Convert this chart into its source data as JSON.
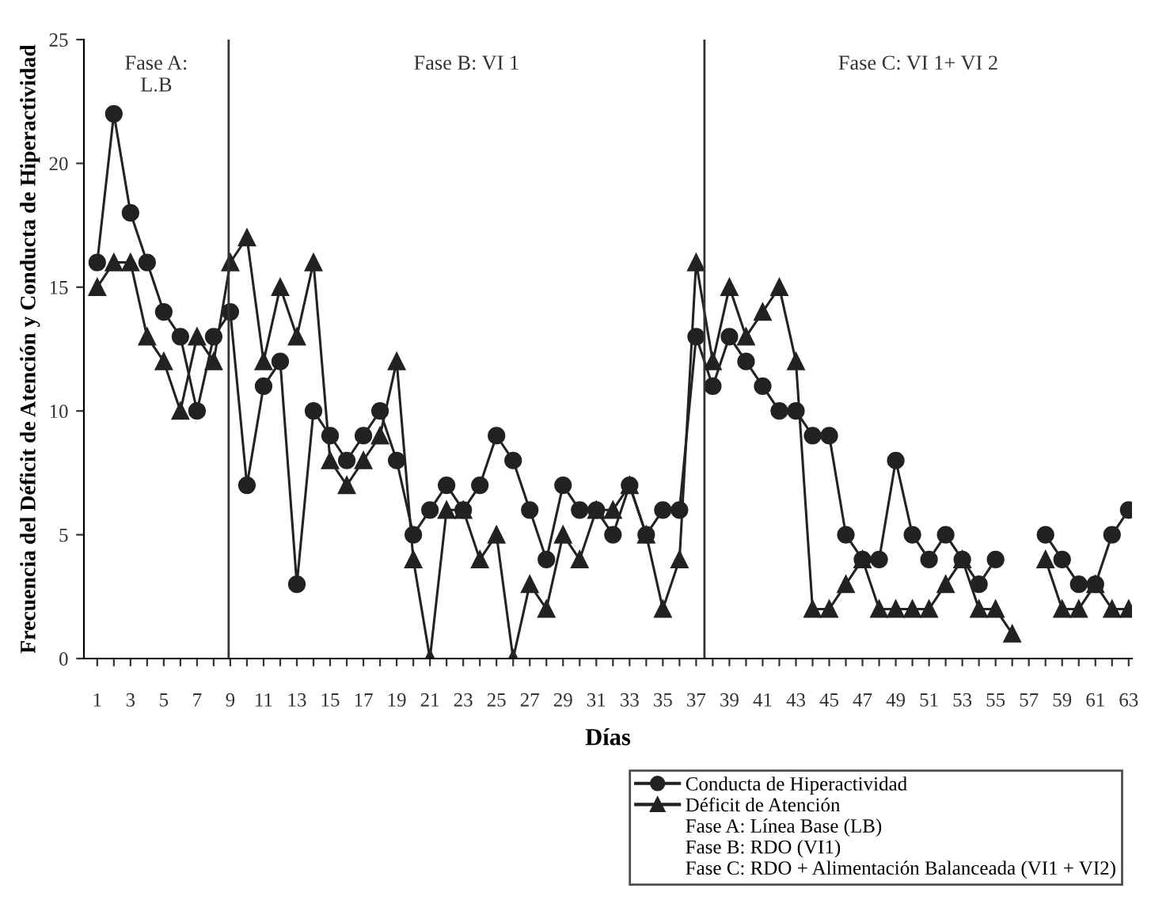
{
  "chart_data": {
    "type": "line",
    "xlabel": "Días",
    "ylabel": "Frecuencia del Déficit de Atención y Conducta de Hiperactividad",
    "x": [
      1,
      2,
      3,
      4,
      5,
      6,
      7,
      8,
      9,
      10,
      11,
      12,
      13,
      14,
      15,
      16,
      17,
      18,
      19,
      20,
      21,
      22,
      23,
      24,
      25,
      26,
      27,
      28,
      29,
      30,
      31,
      32,
      33,
      34,
      35,
      36,
      37,
      38,
      39,
      40,
      41,
      42,
      43,
      44,
      45,
      46,
      47,
      48,
      49,
      50,
      51,
      52,
      53,
      54,
      55,
      56,
      57,
      58,
      59,
      60,
      61,
      62,
      63
    ],
    "series": [
      {
        "name": "Conducta de Hiperactividad",
        "color": "#222222",
        "marker": "circle",
        "values": [
          16,
          22,
          18,
          16,
          14,
          13,
          10,
          13,
          14,
          7,
          11,
          12,
          3,
          10,
          9,
          8,
          9,
          10,
          8,
          5,
          6,
          7,
          6,
          7,
          9,
          8,
          6,
          4,
          7,
          6,
          6,
          5,
          7,
          5,
          6,
          6,
          13,
          11,
          13,
          12,
          11,
          10,
          10,
          9,
          9,
          5,
          4,
          4,
          8,
          5,
          4,
          5,
          4,
          3,
          4,
          null,
          null,
          5,
          4,
          3,
          3,
          5,
          6
        ]
      },
      {
        "name": "Déficit de Atención",
        "color": "#222222",
        "marker": "triangle",
        "values": [
          15,
          16,
          16,
          13,
          12,
          10,
          13,
          12,
          16,
          17,
          12,
          15,
          13,
          16,
          8,
          7,
          8,
          9,
          12,
          4,
          0,
          6,
          6,
          4,
          5,
          0,
          3,
          2,
          5,
          4,
          6,
          6,
          7,
          5,
          2,
          4,
          16,
          12,
          15,
          13,
          14,
          15,
          12,
          2,
          2,
          3,
          4,
          2,
          2,
          2,
          2,
          3,
          4,
          2,
          2,
          1,
          null,
          4,
          2,
          2,
          3,
          2,
          2
        ]
      }
    ],
    "xlim": [
      0.2,
      63.2
    ],
    "ylim": [
      0,
      25
    ],
    "yticks": [
      0,
      5,
      10,
      15,
      20,
      25
    ],
    "xticks": [
      1,
      {
        "value": 2,
        "label": null
      },
      3,
      {
        "value": 4,
        "label": null
      },
      5,
      {
        "value": 6,
        "label": null
      },
      7,
      {
        "value": 8,
        "label": null
      },
      9,
      {
        "value": 10,
        "label": null
      },
      11,
      {
        "value": 12,
        "label": null
      },
      13,
      {
        "value": 14,
        "label": null
      },
      15,
      {
        "value": 16,
        "label": null
      },
      17,
      {
        "value": 18,
        "label": null
      },
      19,
      {
        "value": 20,
        "label": null
      },
      21,
      {
        "value": 22,
        "label": null
      },
      23,
      {
        "value": 24,
        "label": null
      },
      25,
      {
        "value": 26,
        "label": null
      },
      27,
      {
        "value": 28,
        "label": null
      },
      29,
      {
        "value": 30,
        "label": null
      },
      31,
      {
        "value": 32,
        "label": null
      },
      33,
      {
        "value": 34,
        "label": null
      },
      35,
      {
        "value": 36,
        "label": null
      },
      37,
      {
        "value": 38,
        "label": null
      },
      39,
      {
        "value": 40,
        "label": null
      },
      41,
      {
        "value": 42,
        "label": null
      },
      43,
      {
        "value": 44,
        "label": null
      },
      45,
      {
        "value": 46,
        "label": null
      },
      47,
      {
        "value": 48,
        "label": null
      },
      49,
      {
        "value": 50,
        "label": null
      },
      51,
      {
        "value": 52,
        "label": null
      },
      53,
      {
        "value": 54,
        "label": null
      },
      55,
      {
        "value": 56,
        "label": null
      },
      57,
      {
        "value": 58,
        "label": null
      },
      59,
      {
        "value": 60,
        "label": null
      },
      61,
      {
        "value": 62,
        "label": null
      },
      63
    ],
    "ref_lines": [
      {
        "axis": "x",
        "value": 8.9,
        "color": "#333333"
      },
      {
        "axis": "x",
        "value": 37.5,
        "color": "#333333"
      }
    ],
    "annotations": [
      "Fase A:\nL.B",
      "Fase B: VI 1",
      "Fase C: VI 1+ VI 2",
      "Fase A: Línea Base (LB)",
      "Fase B: RDO (VI1)",
      "Fase C: RDO + Alimentación Balanceada (VI1 + VI2)"
    ],
    "grid": false,
    "legend": "bottom right",
    "line_style": "solid"
  }
}
